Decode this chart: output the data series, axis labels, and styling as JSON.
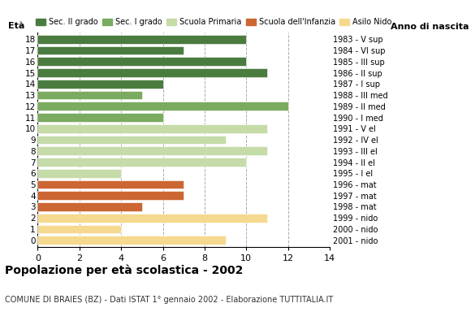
{
  "ages": [
    18,
    17,
    16,
    15,
    14,
    13,
    12,
    11,
    10,
    9,
    8,
    7,
    6,
    5,
    4,
    3,
    2,
    1,
    0
  ],
  "anno_nascita": [
    "1983 - V sup",
    "1984 - VI sup",
    "1985 - III sup",
    "1986 - II sup",
    "1987 - I sup",
    "1988 - III med",
    "1989 - II med",
    "1990 - I med",
    "1991 - V el",
    "1992 - IV el",
    "1993 - III el",
    "1994 - II el",
    "1995 - I el",
    "1996 - mat",
    "1997 - mat",
    "1998 - mat",
    "1999 - nido",
    "2000 - nido",
    "2001 - nido"
  ],
  "values": [
    10,
    7,
    10,
    11,
    6,
    5,
    12,
    6,
    11,
    9,
    11,
    10,
    4,
    7,
    7,
    5,
    11,
    4,
    9
  ],
  "categories": {
    "Sec. II grado": {
      "ages": [
        18,
        17,
        16,
        15,
        14
      ],
      "color": "#4a7c3f"
    },
    "Sec. I grado": {
      "ages": [
        13,
        12,
        11
      ],
      "color": "#7aab60"
    },
    "Scuola Primaria": {
      "ages": [
        10,
        9,
        8,
        7,
        6
      ],
      "color": "#c5dba8"
    },
    "Scuola dell'Infanzia": {
      "ages": [
        5,
        4,
        3
      ],
      "color": "#cc6633"
    },
    "Asilo Nido": {
      "ages": [
        2,
        1,
        0
      ],
      "color": "#f5d98e"
    }
  },
  "xlim": [
    0,
    14
  ],
  "xticks": [
    0,
    2,
    4,
    6,
    8,
    10,
    12,
    14
  ],
  "title": "Popolazione per età scolastica - 2002",
  "subtitle": "COMUNE DI BRAIES (BZ) - Dati ISTAT 1° gennaio 2002 - Elaborazione TUTTITALIA.IT",
  "ylabel_left": "Età",
  "ylabel_right": "Anno di nascita",
  "bar_height": 0.78,
  "grid_color": "#aaaaaa",
  "bg_color": "#ffffff",
  "legend_order": [
    "Sec. II grado",
    "Sec. I grado",
    "Scuola Primaria",
    "Scuola dell'Infanzia",
    "Asilo Nido"
  ],
  "legend_colors": {
    "Sec. II grado": "#4a7c3f",
    "Sec. I grado": "#7aab60",
    "Scuola Primaria": "#c5dba8",
    "Scuola dell'Infanzia": "#cc6633",
    "Asilo Nido": "#f5d98e"
  }
}
